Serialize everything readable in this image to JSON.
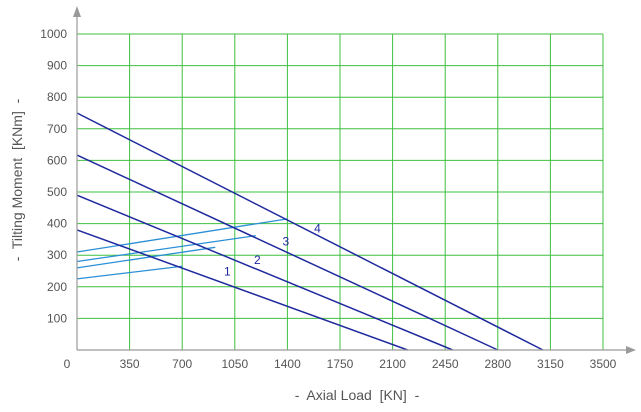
{
  "chart_data": {
    "type": "line",
    "title": "",
    "xlabel": "-  Axial Load  [KN]  -",
    "ylabel": "-  Tilting Moment  [KNm]  -",
    "xlim": [
      0,
      3500
    ],
    "ylim": [
      0,
      1000
    ],
    "x_ticks": [
      0,
      350,
      700,
      1050,
      1400,
      1750,
      2100,
      2450,
      2800,
      3150,
      3500
    ],
    "x_tick_labels": [
      "0",
      "350",
      "700",
      "1050",
      "1400",
      "1750",
      "2100",
      "2450",
      "2800",
      "3150",
      "3500"
    ],
    "y_ticks": [
      0,
      100,
      200,
      300,
      400,
      500,
      600,
      700,
      800,
      900,
      1000
    ],
    "y_tick_labels": [
      "0",
      "100",
      "200",
      "300",
      "400",
      "500",
      "600",
      "700",
      "800",
      "900",
      "1000"
    ],
    "grid": true,
    "grid_color": "#3fbf3f",
    "axis_color": "#9a9a9a",
    "series": [
      {
        "label": "1",
        "color": "#1f2a9e",
        "points": [
          [
            0,
            380
          ],
          [
            2200,
            0
          ]
        ],
        "label_at": [
          1000,
          235
        ]
      },
      {
        "label": "2",
        "color": "#1f2a9e",
        "points": [
          [
            0,
            490
          ],
          [
            2500,
            0
          ]
        ],
        "label_at": [
          1200,
          272
        ]
      },
      {
        "label": "3",
        "color": "#1f2a9e",
        "points": [
          [
            0,
            617
          ],
          [
            2800,
            0
          ]
        ],
        "label_at": [
          1390,
          330
        ]
      },
      {
        "label": "4",
        "color": "#1f2a9e",
        "points": [
          [
            0,
            750
          ],
          [
            3100,
            0
          ]
        ],
        "label_at": [
          1600,
          372
        ]
      }
    ],
    "secondary_lines": [
      {
        "color": "#2a8fd6",
        "points": [
          [
            0,
            225
          ],
          [
            700,
            265
          ]
        ]
      },
      {
        "color": "#2a8fd6",
        "points": [
          [
            0,
            260
          ],
          [
            920,
            325
          ]
        ]
      },
      {
        "color": "#2a8fd6",
        "points": [
          [
            0,
            280
          ],
          [
            1190,
            362
          ]
        ]
      },
      {
        "color": "#2a8fd6",
        "points": [
          [
            0,
            310
          ],
          [
            1400,
            415
          ]
        ]
      }
    ]
  }
}
